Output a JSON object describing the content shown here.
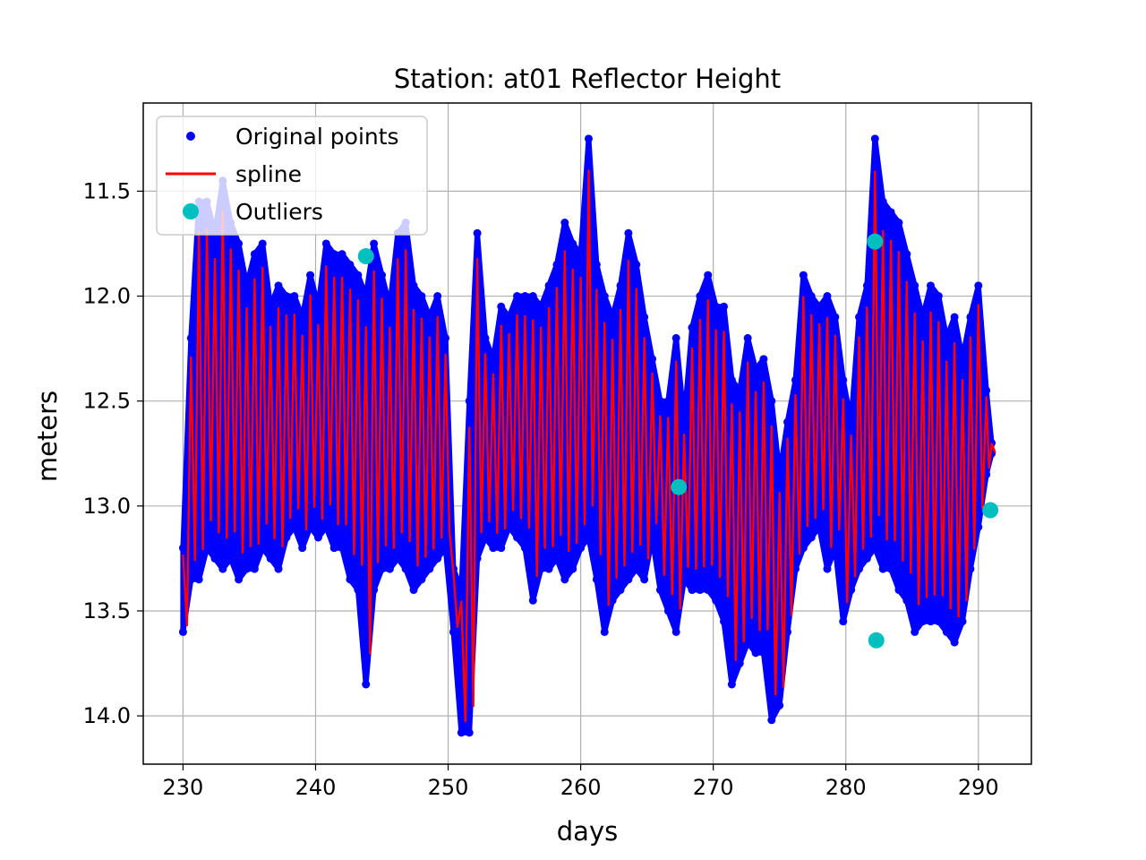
{
  "chart_data": {
    "type": "scatter",
    "title": "Station: at01 Reflector Height",
    "xlabel": "days",
    "ylabel": "meters",
    "xlim": [
      227,
      294
    ],
    "ylim": [
      14.23,
      11.08
    ],
    "y_inverted": true,
    "grid": true,
    "legend_position": "top-left",
    "xticks": [
      230,
      240,
      250,
      260,
      270,
      280,
      290
    ],
    "yticks": [
      11.5,
      12.0,
      12.5,
      13.0,
      13.5,
      14.0
    ],
    "ytick_labels": [
      "11.5",
      "12.0",
      "12.5",
      "13.0",
      "13.5",
      "14.0"
    ],
    "series": [
      {
        "name": "Original points",
        "kind": "markers",
        "color": "#0000ff",
        "approximate_envelope": {
          "x": [
            230.0,
            230.6,
            231.2,
            231.8,
            232.4,
            233.0,
            233.6,
            234.2,
            234.8,
            235.4,
            236.0,
            236.6,
            237.2,
            237.8,
            238.4,
            239.0,
            239.6,
            240.2,
            240.8,
            241.4,
            242.0,
            242.6,
            243.2,
            243.8,
            244.4,
            245.0,
            245.6,
            246.2,
            246.8,
            247.4,
            248.0,
            248.6,
            249.2,
            249.8,
            250.4,
            251.0,
            251.6,
            252.2,
            252.8,
            253.4,
            254.0,
            254.6,
            255.2,
            255.8,
            256.4,
            257.0,
            257.6,
            258.2,
            258.8,
            259.4,
            260.0,
            260.6,
            261.2,
            261.8,
            262.4,
            263.0,
            263.6,
            264.2,
            264.8,
            265.4,
            266.0,
            266.6,
            267.2,
            267.8,
            268.4,
            269.0,
            269.6,
            270.2,
            270.8,
            271.4,
            272.0,
            272.6,
            273.2,
            273.8,
            274.4,
            275.0,
            275.6,
            276.2,
            276.8,
            277.4,
            278.0,
            278.6,
            279.2,
            279.8,
            280.4,
            281.0,
            281.6,
            282.2,
            282.8,
            283.4,
            284.0,
            284.6,
            285.2,
            285.8,
            286.4,
            287.0,
            287.6,
            288.2,
            288.8,
            289.4,
            290.0,
            290.6,
            291.0
          ],
          "y_high": [
            13.2,
            12.2,
            11.55,
            11.55,
            11.7,
            11.45,
            11.65,
            11.75,
            11.95,
            11.8,
            11.75,
            12.05,
            11.95,
            12.0,
            12.0,
            12.1,
            11.9,
            12.05,
            11.75,
            11.8,
            11.8,
            11.85,
            11.9,
            12.0,
            11.75,
            11.9,
            12.05,
            11.7,
            11.65,
            11.95,
            12.0,
            12.1,
            12.0,
            12.2,
            13.3,
            13.4,
            12.5,
            11.7,
            12.2,
            12.3,
            12.05,
            12.1,
            12.0,
            12.0,
            12.0,
            12.05,
            11.95,
            11.85,
            11.65,
            11.75,
            11.8,
            11.25,
            11.85,
            12.0,
            12.1,
            11.95,
            11.7,
            11.85,
            12.1,
            12.3,
            12.5,
            12.5,
            12.2,
            12.6,
            12.15,
            12.0,
            11.9,
            12.05,
            12.05,
            12.4,
            12.45,
            12.2,
            12.35,
            12.3,
            12.5,
            12.85,
            12.6,
            12.4,
            11.9,
            12.0,
            12.05,
            12.0,
            12.1,
            12.4,
            12.6,
            12.1,
            11.95,
            11.25,
            11.55,
            11.6,
            11.65,
            11.8,
            11.95,
            12.1,
            11.95,
            12.0,
            12.2,
            12.1,
            12.3,
            12.1,
            11.95,
            12.45,
            12.7
          ],
          "y_low": [
            13.6,
            13.35,
            13.35,
            13.2,
            13.25,
            13.3,
            13.25,
            13.35,
            13.3,
            13.3,
            13.2,
            13.25,
            13.3,
            13.15,
            13.1,
            13.2,
            13.1,
            13.15,
            13.1,
            13.2,
            13.2,
            13.35,
            13.4,
            13.85,
            13.4,
            13.3,
            13.3,
            13.25,
            13.3,
            13.4,
            13.35,
            13.3,
            13.25,
            13.2,
            13.6,
            14.08,
            14.08,
            13.25,
            13.15,
            13.2,
            13.2,
            13.1,
            13.15,
            13.2,
            13.45,
            13.3,
            13.3,
            13.25,
            13.35,
            13.3,
            13.2,
            13.15,
            13.35,
            13.6,
            13.45,
            13.4,
            13.35,
            13.3,
            13.35,
            13.15,
            13.4,
            13.5,
            13.6,
            13.35,
            13.4,
            13.4,
            13.4,
            13.45,
            13.55,
            13.85,
            13.75,
            13.65,
            13.7,
            13.7,
            14.02,
            13.95,
            13.6,
            13.3,
            13.2,
            13.15,
            13.1,
            13.3,
            13.2,
            13.55,
            13.4,
            13.3,
            13.25,
            13.2,
            13.3,
            13.3,
            13.4,
            13.45,
            13.6,
            13.55,
            13.55,
            13.55,
            13.6,
            13.65,
            13.55,
            13.3,
            13.1,
            12.85,
            12.75
          ]
        }
      },
      {
        "name": "spline",
        "kind": "line",
        "color": "#ff0000",
        "approximate_envelope_same_as": "Original points"
      },
      {
        "name": "Outliers",
        "kind": "markers",
        "color": "#00bfbf",
        "points": [
          {
            "x": 243.8,
            "y": 11.81
          },
          {
            "x": 267.4,
            "y": 12.91
          },
          {
            "x": 282.2,
            "y": 11.74
          },
          {
            "x": 282.3,
            "y": 13.64
          },
          {
            "x": 290.9,
            "y": 13.02
          }
        ]
      }
    ]
  }
}
